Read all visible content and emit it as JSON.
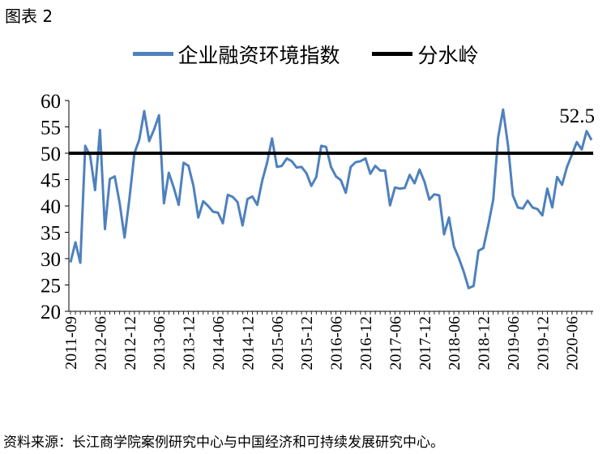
{
  "figure_label": "图表 2",
  "source": "资料来源：长江商学院案例研究中心与中国经济和可持续发展研究中心。",
  "colors": {
    "index_line": "#4f81bd",
    "watershed": "#000000"
  },
  "chart_data": {
    "type": "line",
    "title": "",
    "xlabel": "",
    "ylabel": "",
    "ylim": [
      20,
      60
    ],
    "yticks": [
      20,
      25,
      30,
      35,
      40,
      45,
      50,
      55,
      60
    ],
    "xtick_labels": [
      "2011-09",
      "2012-06",
      "2012-12",
      "2013-06",
      "2013-12",
      "2014-06",
      "2014-12",
      "2015-06",
      "2015-12",
      "2016-06",
      "2016-12",
      "2017-06",
      "2017-12",
      "2018-06",
      "2018-12",
      "2019-06",
      "2019-12",
      "2020-06"
    ],
    "legend_position": "top",
    "annotation": "52.5",
    "series": [
      {
        "name": "企业融资环境指数",
        "values": [
          29.3,
          33.1,
          29.2,
          51.4,
          49.5,
          43.0,
          54.4,
          35.6,
          45.1,
          45.6,
          40.5,
          34.0,
          41.5,
          50.0,
          52.6,
          58.0,
          52.3,
          54.5,
          57.2,
          40.5,
          46.3,
          43.5,
          40.2,
          48.2,
          47.6,
          43.8,
          37.8,
          40.9,
          40.0,
          38.9,
          38.7,
          36.7,
          42.1,
          41.7,
          40.7,
          36.3,
          41.3,
          41.8,
          40.2,
          44.8,
          48.2,
          52.8,
          47.4,
          47.6,
          49.0,
          48.5,
          47.3,
          47.4,
          46.2,
          43.8,
          45.5,
          51.4,
          51.2,
          47.4,
          45.6,
          44.9,
          42.5,
          47.4,
          48.3,
          48.5,
          49.0,
          46.1,
          47.6,
          46.7,
          46.7,
          40.1,
          43.5,
          43.3,
          43.4,
          45.9,
          44.3,
          46.9,
          44.6,
          41.2,
          42.2,
          42.0,
          34.6,
          37.8,
          32.3,
          30.1,
          27.5,
          24.4,
          24.8,
          31.5,
          32.0,
          36.4,
          41.2,
          53.0,
          58.3,
          51.5,
          42.0,
          39.7,
          39.5,
          41.0,
          39.7,
          39.4,
          38.2,
          43.3,
          39.7,
          45.5,
          44.0,
          47.4,
          49.7,
          52.1,
          50.7,
          54.2,
          52.5
        ]
      },
      {
        "name": "分水岭",
        "values": [
          50
        ]
      }
    ]
  }
}
